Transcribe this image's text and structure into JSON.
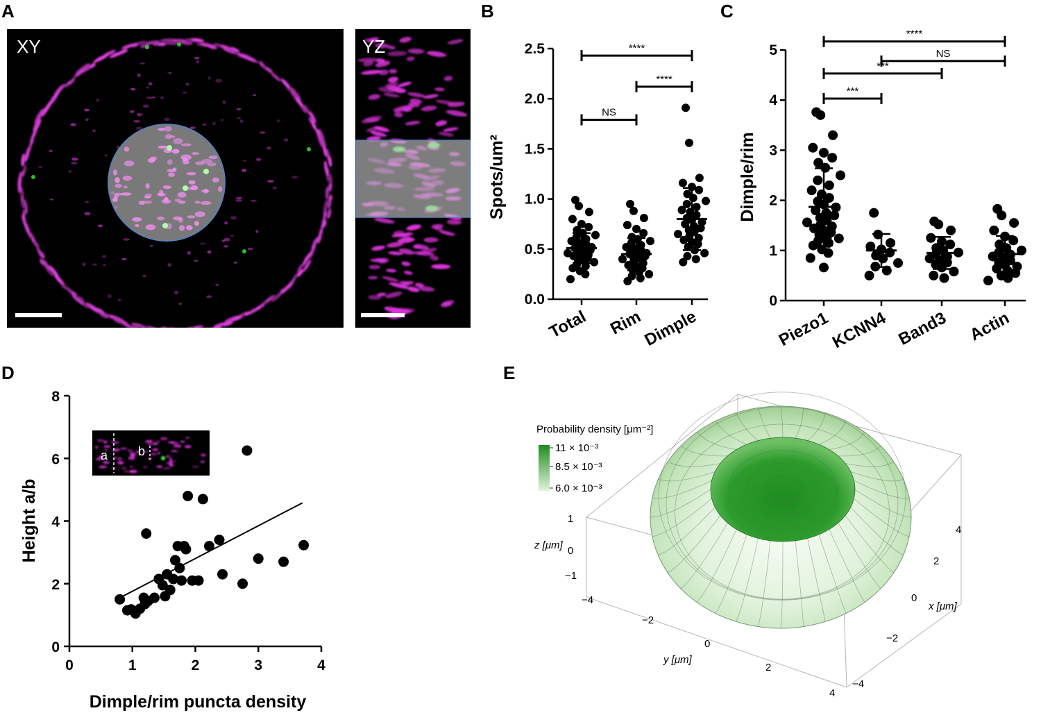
{
  "panels": {
    "A": "A",
    "B": "B",
    "C": "C",
    "D": "D",
    "E": "E"
  },
  "panel_a": {
    "xy_label": "XY",
    "yz_label": "YZ"
  },
  "chart_data": [
    {
      "type": "scatter",
      "panel": "B",
      "ylabel": "Spots/um²",
      "ylim": [
        0,
        2.5
      ],
      "yticks": [
        "0.0",
        "0.5",
        "1.0",
        "1.5",
        "2.0",
        "2.5"
      ],
      "categories": [
        "Total",
        "Rim",
        "Dimple"
      ],
      "groups": [
        {
          "name": "Total",
          "mean": 0.51,
          "sd_low": 0.36,
          "sd_high": 0.66,
          "values": [
            0.99,
            0.93,
            0.87,
            0.8,
            0.75,
            0.72,
            0.69,
            0.66,
            0.64,
            0.62,
            0.6,
            0.58,
            0.56,
            0.55,
            0.54,
            0.53,
            0.52,
            0.51,
            0.5,
            0.49,
            0.48,
            0.47,
            0.46,
            0.45,
            0.44,
            0.43,
            0.42,
            0.41,
            0.4,
            0.39,
            0.37,
            0.35,
            0.33,
            0.31,
            0.28,
            0.25,
            0.2
          ]
        },
        {
          "name": "Rim",
          "mean": 0.45,
          "sd_low": 0.29,
          "sd_high": 0.61,
          "values": [
            0.95,
            0.88,
            0.81,
            0.74,
            0.7,
            0.66,
            0.62,
            0.6,
            0.58,
            0.56,
            0.54,
            0.52,
            0.5,
            0.49,
            0.48,
            0.47,
            0.46,
            0.45,
            0.44,
            0.43,
            0.42,
            0.41,
            0.4,
            0.38,
            0.36,
            0.34,
            0.33,
            0.31,
            0.29,
            0.27,
            0.25,
            0.23,
            0.21,
            0.18
          ]
        },
        {
          "name": "Dimple",
          "mean": 0.8,
          "sd_low": 0.49,
          "sd_high": 1.11,
          "values": [
            1.91,
            1.56,
            1.21,
            1.16,
            1.12,
            1.09,
            1.05,
            1.01,
            0.98,
            0.95,
            0.92,
            0.89,
            0.87,
            0.84,
            0.81,
            0.79,
            0.77,
            0.75,
            0.73,
            0.71,
            0.69,
            0.67,
            0.65,
            0.63,
            0.61,
            0.59,
            0.57,
            0.55,
            0.52,
            0.49,
            0.46,
            0.43,
            0.4,
            0.37
          ]
        }
      ],
      "significance": [
        {
          "from": "Total",
          "to": "Dimple",
          "label": "****",
          "y": 2.43
        },
        {
          "from": "Rim",
          "to": "Dimple",
          "label": "****",
          "y": 2.12
        },
        {
          "from": "Total",
          "to": "Rim",
          "label": "NS",
          "y": 1.79
        }
      ]
    },
    {
      "type": "scatter",
      "panel": "C",
      "ylabel": "Dimple/rim",
      "ylim": [
        0,
        5
      ],
      "yticks": [
        "0",
        "1",
        "2",
        "3",
        "4",
        "5"
      ],
      "categories": [
        "Piezo1",
        "KCNN4",
        "Band3",
        "Actin"
      ],
      "groups": [
        {
          "name": "Piezo1",
          "mean": 1.87,
          "sd_low": 1.1,
          "sd_high": 2.64,
          "values": [
            3.76,
            3.7,
            3.3,
            3.05,
            2.95,
            2.85,
            2.75,
            2.65,
            2.5,
            2.4,
            2.3,
            2.2,
            2.12,
            2.05,
            1.98,
            1.92,
            1.86,
            1.8,
            1.75,
            1.7,
            1.65,
            1.6,
            1.56,
            1.52,
            1.48,
            1.44,
            1.4,
            1.36,
            1.32,
            1.28,
            1.24,
            1.2,
            1.15,
            1.1,
            1.02,
            0.95,
            0.85,
            0.66
          ]
        },
        {
          "name": "KCNN4",
          "mean": 1.0,
          "sd_low": 0.67,
          "sd_high": 1.33,
          "values": [
            1.75,
            1.32,
            1.15,
            1.08,
            1.02,
            0.96,
            0.9,
            0.84,
            0.75,
            0.68,
            0.6,
            0.5
          ]
        },
        {
          "name": "Band3",
          "mean": 0.95,
          "sd_low": 0.63,
          "sd_high": 1.27,
          "values": [
            1.58,
            1.52,
            1.4,
            1.25,
            1.18,
            1.12,
            1.05,
            1.0,
            0.96,
            0.92,
            0.88,
            0.84,
            0.8,
            0.76,
            0.72,
            0.66,
            0.58,
            0.5,
            0.45
          ]
        },
        {
          "name": "Actin",
          "mean": 0.93,
          "sd_low": 0.57,
          "sd_high": 1.29,
          "values": [
            1.83,
            1.7,
            1.55,
            1.4,
            1.28,
            1.2,
            1.12,
            1.05,
            1.0,
            0.96,
            0.92,
            0.88,
            0.84,
            0.8,
            0.76,
            0.72,
            0.68,
            0.64,
            0.6,
            0.55,
            0.5,
            0.45,
            0.4
          ]
        }
      ],
      "significance": [
        {
          "from": "Piezo1",
          "to": "Actin",
          "label": "****",
          "y": 5.17
        },
        {
          "from": "KCNN4",
          "to": "Actin",
          "label": "NS",
          "y": 4.78
        },
        {
          "from": "Piezo1",
          "to": "Band3",
          "label": "***",
          "y": 4.53
        },
        {
          "from": "Piezo1",
          "to": "KCNN4",
          "label": "***",
          "y": 4.03
        }
      ]
    },
    {
      "type": "scatter",
      "panel": "D",
      "xlabel": "Dimple/rim puncta density",
      "ylabel": "Height a/b",
      "xlim": [
        0,
        4
      ],
      "ylim": [
        0,
        8
      ],
      "xticks": [
        "0",
        "1",
        "2",
        "3",
        "4"
      ],
      "yticks": [
        "0",
        "2",
        "4",
        "6",
        "8"
      ],
      "x": [
        0.8,
        0.92,
        0.98,
        1.05,
        1.12,
        1.18,
        1.2,
        1.22,
        1.25,
        1.35,
        1.42,
        1.48,
        1.52,
        1.55,
        1.6,
        1.65,
        1.68,
        1.72,
        1.75,
        1.78,
        1.82,
        1.85,
        1.88,
        1.95,
        2.05,
        2.12,
        2.22,
        2.38,
        2.43,
        2.75,
        2.82,
        3.0,
        3.4,
        3.72
      ],
      "y": [
        1.5,
        1.15,
        1.18,
        1.05,
        1.2,
        1.55,
        1.35,
        3.6,
        1.45,
        1.55,
        2.15,
        1.95,
        1.6,
        2.3,
        1.8,
        2.15,
        2.75,
        3.2,
        2.5,
        2.1,
        3.2,
        3.1,
        4.8,
        2.1,
        2.1,
        4.7,
        3.2,
        3.4,
        2.3,
        2.0,
        6.25,
        2.8,
        2.7,
        3.23
      ],
      "fit_line": {
        "x": [
          0.8,
          3.7
        ],
        "y": [
          1.55,
          4.58
        ]
      },
      "inset_labels": {
        "a": "a",
        "b": "b"
      }
    }
  ],
  "panel_e": {
    "legend_title": "Probability density [μm⁻²]",
    "legend_ticks": [
      "11 × 10⁻³",
      "8.5 × 10⁻³",
      "6.0 × 10⁻³"
    ],
    "z_label": "z [μm]",
    "x_label": "x [μm]",
    "y_label": "y [μm]",
    "z_ticks": [
      "1",
      "0",
      "−1"
    ],
    "x_ticks": [
      "4",
      "2",
      "0",
      "−2",
      "−4"
    ],
    "y_ticks": [
      "−4",
      "−2",
      "0",
      "2",
      "4"
    ],
    "colors": {
      "dark": "#2a9a2a",
      "light": "#e8f5e4"
    }
  }
}
